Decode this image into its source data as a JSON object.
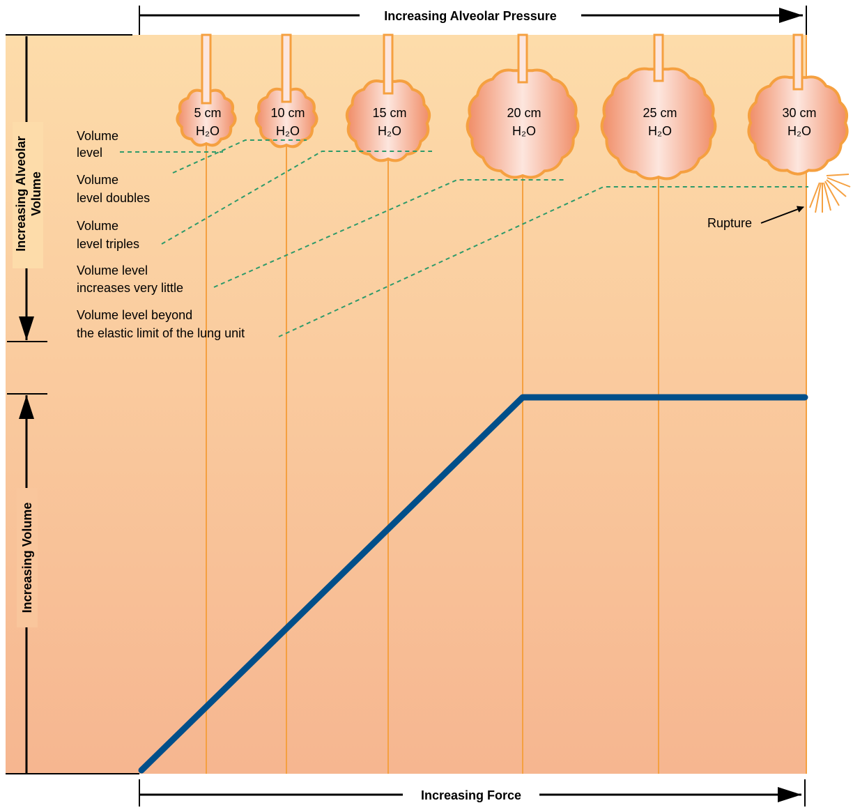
{
  "header": {
    "top_axis": "Increasing Alveolar Pressure",
    "bottom_axis": "Increasing Force",
    "left_upper_axis": [
      "Increasing Alveolar",
      "Volume"
    ],
    "left_lower_axis": "Increasing Volume"
  },
  "alveoli": [
    {
      "pressure": "5 cm",
      "unit": "H₂O"
    },
    {
      "pressure": "10 cm",
      "unit": "H₂O"
    },
    {
      "pressure": "15 cm",
      "unit": "H₂O"
    },
    {
      "pressure": "20 cm",
      "unit": "H₂O"
    },
    {
      "pressure": "25 cm",
      "unit": "H₂O"
    },
    {
      "pressure": "30 cm",
      "unit": "H₂O"
    }
  ],
  "annotations": [
    {
      "lines": [
        "Volume",
        "level"
      ]
    },
    {
      "lines": [
        "Volume",
        "level doubles"
      ]
    },
    {
      "lines": [
        "Volume",
        "level triples"
      ]
    },
    {
      "lines": [
        "Volume level",
        "increases very little"
      ]
    },
    {
      "lines": [
        "Volume level beyond",
        "the elastic limit of the lung unit"
      ]
    }
  ],
  "rupture": "Rupture"
}
